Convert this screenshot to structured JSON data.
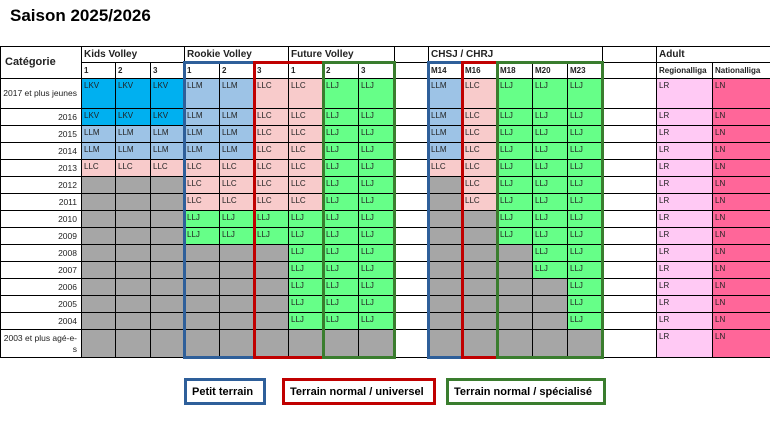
{
  "title": "Saison 2025/2026",
  "categorie_label": "Catégorie",
  "groups": [
    {
      "key": "kids",
      "label": "Kids Volley"
    },
    {
      "key": "rookie",
      "label": "Rookie Volley"
    },
    {
      "key": "future",
      "label": "Future Volley"
    },
    {
      "key": "chsj",
      "label": "CHSJ / CHRJ"
    },
    {
      "key": "adult",
      "label": "Adult"
    }
  ],
  "columns": [
    "1",
    "2",
    "3",
    "1",
    "2",
    "3",
    "1",
    "2",
    "3",
    "",
    "M14",
    "M16",
    "M18",
    "M20",
    "M23",
    "",
    "Regionalliga",
    "Nationalliga"
  ],
  "rows": [
    {
      "label": "2017 et plus jeunes",
      "cells": [
        "LKV",
        "LKV",
        "LKV",
        "LLM",
        "LLM",
        "LLC",
        "LLC",
        "LLJ",
        "LLJ",
        "",
        "LLM",
        "LLC",
        "LLJ",
        "LLJ",
        "LLJ",
        "",
        "LR",
        "LN"
      ]
    },
    {
      "label": "2016",
      "cells": [
        "LKV",
        "LKV",
        "LKV",
        "LLM",
        "LLM",
        "LLC",
        "LLC",
        "LLJ",
        "LLJ",
        "",
        "LLM",
        "LLC",
        "LLJ",
        "LLJ",
        "LLJ",
        "",
        "LR",
        "LN"
      ]
    },
    {
      "label": "2015",
      "cells": [
        "LLM",
        "LLM",
        "LLM",
        "LLM",
        "LLM",
        "LLC",
        "LLC",
        "LLJ",
        "LLJ",
        "",
        "LLM",
        "LLC",
        "LLJ",
        "LLJ",
        "LLJ",
        "",
        "LR",
        "LN"
      ]
    },
    {
      "label": "2014",
      "cells": [
        "LLM",
        "LLM",
        "LLM",
        "LLM",
        "LLM",
        "LLC",
        "LLC",
        "LLJ",
        "LLJ",
        "",
        "LLM",
        "LLC",
        "LLJ",
        "LLJ",
        "LLJ",
        "",
        "LR",
        "LN"
      ]
    },
    {
      "label": "2013",
      "cells": [
        "LLC",
        "LLC",
        "LLC",
        "LLC",
        "LLC",
        "LLC",
        "LLC",
        "LLJ",
        "LLJ",
        "",
        "LLC",
        "LLC",
        "LLJ",
        "LLJ",
        "LLJ",
        "",
        "LR",
        "LN"
      ]
    },
    {
      "label": "2012",
      "cells": [
        "-",
        "-",
        "-",
        "LLC",
        "LLC",
        "LLC",
        "LLC",
        "LLJ",
        "LLJ",
        "",
        "-",
        "LLC",
        "LLJ",
        "LLJ",
        "LLJ",
        "",
        "LR",
        "LN"
      ]
    },
    {
      "label": "2011",
      "cells": [
        "-",
        "-",
        "-",
        "LLC",
        "LLC",
        "LLC",
        "LLC",
        "LLJ",
        "LLJ",
        "",
        "-",
        "LLC",
        "LLJ",
        "LLJ",
        "LLJ",
        "",
        "LR",
        "LN"
      ]
    },
    {
      "label": "2010",
      "cells": [
        "-",
        "-",
        "-",
        "LLJ",
        "LLJ",
        "LLJ",
        "LLJ",
        "LLJ",
        "LLJ",
        "",
        "-",
        "-",
        "LLJ",
        "LLJ",
        "LLJ",
        "",
        "LR",
        "LN"
      ]
    },
    {
      "label": "2009",
      "cells": [
        "-",
        "-",
        "-",
        "LLJ",
        "LLJ",
        "LLJ",
        "LLJ",
        "LLJ",
        "LLJ",
        "",
        "-",
        "-",
        "LLJ",
        "LLJ",
        "LLJ",
        "",
        "LR",
        "LN"
      ]
    },
    {
      "label": "2008",
      "cells": [
        "-",
        "-",
        "-",
        "-",
        "-",
        "-",
        "LLJ",
        "LLJ",
        "LLJ",
        "",
        "-",
        "-",
        "-",
        "LLJ",
        "LLJ",
        "",
        "LR",
        "LN"
      ]
    },
    {
      "label": "2007",
      "cells": [
        "-",
        "-",
        "-",
        "-",
        "-",
        "-",
        "LLJ",
        "LLJ",
        "LLJ",
        "",
        "-",
        "-",
        "-",
        "LLJ",
        "LLJ",
        "",
        "LR",
        "LN"
      ]
    },
    {
      "label": "2006",
      "cells": [
        "-",
        "-",
        "-",
        "-",
        "-",
        "-",
        "LLJ",
        "LLJ",
        "LLJ",
        "",
        "-",
        "-",
        "-",
        "-",
        "LLJ",
        "",
        "LR",
        "LN"
      ]
    },
    {
      "label": "2005",
      "cells": [
        "-",
        "-",
        "-",
        "-",
        "-",
        "-",
        "LLJ",
        "LLJ",
        "LLJ",
        "",
        "-",
        "-",
        "-",
        "-",
        "LLJ",
        "",
        "LR",
        "LN"
      ]
    },
    {
      "label": "2004",
      "cells": [
        "-",
        "-",
        "-",
        "-",
        "-",
        "-",
        "LLJ",
        "LLJ",
        "LLJ",
        "",
        "-",
        "-",
        "-",
        "-",
        "LLJ",
        "",
        "LR",
        "LN"
      ]
    },
    {
      "label": "2003 et plus agé-e-s",
      "cells": [
        "-",
        "-",
        "-",
        "-",
        "-",
        "-",
        "-",
        "-",
        "-",
        "",
        "-",
        "-",
        "-",
        "-",
        "-",
        "",
        "LR",
        "LN"
      ]
    }
  ],
  "colors": {
    "LKV": "#00b0f0",
    "LLM": "#9dc3e6",
    "LLC": "#f8cbcb",
    "LLJ": "#66ff88",
    "LR": "#ffc9f4",
    "LN": "#ff6699",
    "-": "#a6a6a6",
    "": "#ffffff",
    "frame_petit": "#2e5f9a",
    "frame_normal": "#c00000",
    "frame_special": "#3a7d2e"
  },
  "legend": {
    "petit": "Petit terrain",
    "normal": "Terrain normal / universel",
    "special": "Terrain normal / spécialisé"
  }
}
